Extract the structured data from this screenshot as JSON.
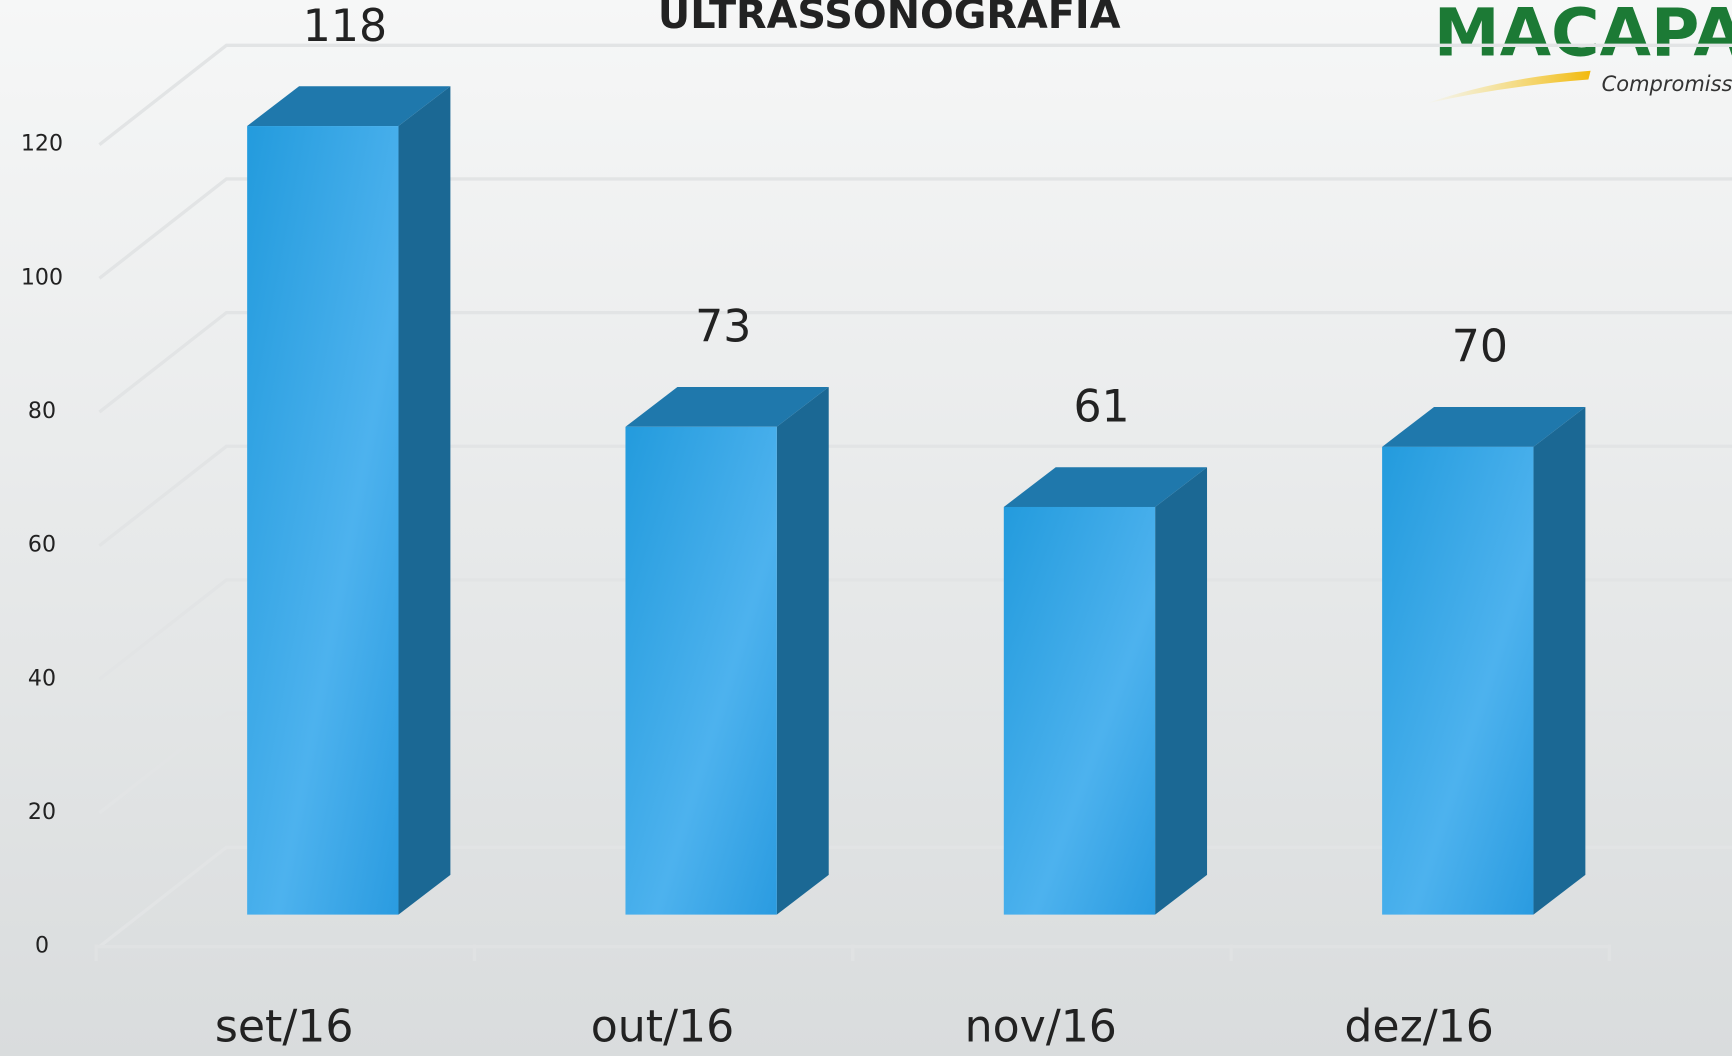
{
  "chart_data": {
    "type": "bar3d",
    "title": "ULTRASSONOGRAFIA",
    "categories": [
      "set/16",
      "out/16",
      "nov/16",
      "dez/16"
    ],
    "values": [
      118,
      73,
      61,
      70
    ],
    "color": "#2a9de0",
    "ylim": [
      0,
      120
    ],
    "yticks": [
      0,
      20,
      40,
      60,
      80,
      100,
      120
    ],
    "grid": true
  },
  "logo": {
    "name": "MACAPA",
    "tagline": "Compromiss"
  }
}
